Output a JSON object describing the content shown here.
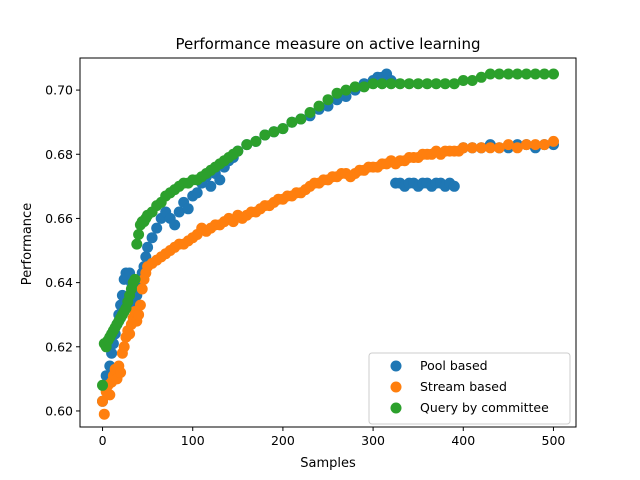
{
  "chart_data": {
    "type": "scatter",
    "title": "Performance measure on active learning",
    "xlabel": "Samples",
    "ylabel": "Performance",
    "xlim": [
      -25,
      525
    ],
    "ylim": [
      0.595,
      0.71
    ],
    "xticks": [
      0,
      100,
      200,
      300,
      400,
      500
    ],
    "yticks": [
      0.6,
      0.62,
      0.64,
      0.66,
      0.68,
      0.7
    ],
    "ytick_labels": [
      "0.60",
      "0.62",
      "0.64",
      "0.66",
      "0.68",
      "0.70"
    ],
    "legend_position": "lower-right",
    "grid": false,
    "series": [
      {
        "name": "Pool based",
        "color": "#1f77b4",
        "points": [
          [
            0,
            0.603
          ],
          [
            2,
            0.608
          ],
          [
            4,
            0.611
          ],
          [
            6,
            0.61
          ],
          [
            8,
            0.614
          ],
          [
            10,
            0.618
          ],
          [
            12,
            0.621
          ],
          [
            14,
            0.624
          ],
          [
            16,
            0.627
          ],
          [
            18,
            0.63
          ],
          [
            20,
            0.633
          ],
          [
            22,
            0.636
          ],
          [
            24,
            0.641
          ],
          [
            26,
            0.643
          ],
          [
            28,
            0.642
          ],
          [
            30,
            0.643
          ],
          [
            32,
            0.64
          ],
          [
            34,
            0.636
          ],
          [
            36,
            0.633
          ],
          [
            38,
            0.636
          ],
          [
            40,
            0.638
          ],
          [
            42,
            0.641
          ],
          [
            44,
            0.643
          ],
          [
            46,
            0.645
          ],
          [
            48,
            0.648
          ],
          [
            50,
            0.651
          ],
          [
            55,
            0.654
          ],
          [
            60,
            0.657
          ],
          [
            65,
            0.66
          ],
          [
            70,
            0.662
          ],
          [
            75,
            0.66
          ],
          [
            80,
            0.658
          ],
          [
            85,
            0.662
          ],
          [
            90,
            0.665
          ],
          [
            95,
            0.663
          ],
          [
            100,
            0.667
          ],
          [
            105,
            0.668
          ],
          [
            110,
            0.671
          ],
          [
            115,
            0.673
          ],
          [
            120,
            0.67
          ],
          [
            125,
            0.674
          ],
          [
            130,
            0.672
          ],
          [
            135,
            0.676
          ],
          [
            140,
            0.678
          ],
          [
            145,
            0.679
          ],
          [
            150,
            0.681
          ],
          [
            160,
            0.683
          ],
          [
            170,
            0.684
          ],
          [
            180,
            0.686
          ],
          [
            190,
            0.687
          ],
          [
            200,
            0.688
          ],
          [
            210,
            0.69
          ],
          [
            220,
            0.691
          ],
          [
            230,
            0.692
          ],
          [
            240,
            0.694
          ],
          [
            250,
            0.695
          ],
          [
            260,
            0.697
          ],
          [
            270,
            0.698
          ],
          [
            280,
            0.7
          ],
          [
            290,
            0.702
          ],
          [
            300,
            0.703
          ],
          [
            305,
            0.704
          ],
          [
            310,
            0.704
          ],
          [
            315,
            0.705
          ],
          [
            320,
            0.703
          ],
          [
            325,
            0.671
          ],
          [
            330,
            0.671
          ],
          [
            335,
            0.67
          ],
          [
            340,
            0.671
          ],
          [
            345,
            0.671
          ],
          [
            350,
            0.67
          ],
          [
            355,
            0.671
          ],
          [
            360,
            0.671
          ],
          [
            365,
            0.67
          ],
          [
            370,
            0.671
          ],
          [
            375,
            0.671
          ],
          [
            380,
            0.67
          ],
          [
            385,
            0.671
          ],
          [
            390,
            0.67
          ],
          [
            400,
            0.682
          ],
          [
            410,
            0.682
          ],
          [
            420,
            0.682
          ],
          [
            430,
            0.683
          ],
          [
            440,
            0.682
          ],
          [
            450,
            0.682
          ],
          [
            460,
            0.683
          ],
          [
            470,
            0.683
          ],
          [
            480,
            0.682
          ],
          [
            490,
            0.683
          ],
          [
            500,
            0.683
          ]
        ]
      },
      {
        "name": "Stream based",
        "color": "#ff7f0e",
        "points": [
          [
            0,
            0.603
          ],
          [
            2,
            0.599
          ],
          [
            4,
            0.606
          ],
          [
            6,
            0.608
          ],
          [
            8,
            0.605
          ],
          [
            10,
            0.609
          ],
          [
            12,
            0.611
          ],
          [
            14,
            0.613
          ],
          [
            16,
            0.61
          ],
          [
            18,
            0.614
          ],
          [
            20,
            0.612
          ],
          [
            22,
            0.618
          ],
          [
            24,
            0.62
          ],
          [
            26,
            0.623
          ],
          [
            28,
            0.625
          ],
          [
            30,
            0.624
          ],
          [
            32,
            0.627
          ],
          [
            34,
            0.629
          ],
          [
            36,
            0.631
          ],
          [
            38,
            0.628
          ],
          [
            40,
            0.63
          ],
          [
            42,
            0.633
          ],
          [
            44,
            0.638
          ],
          [
            46,
            0.641
          ],
          [
            48,
            0.643
          ],
          [
            50,
            0.645
          ],
          [
            55,
            0.646
          ],
          [
            60,
            0.647
          ],
          [
            65,
            0.648
          ],
          [
            70,
            0.649
          ],
          [
            75,
            0.65
          ],
          [
            80,
            0.651
          ],
          [
            85,
            0.652
          ],
          [
            90,
            0.652
          ],
          [
            95,
            0.653
          ],
          [
            100,
            0.654
          ],
          [
            105,
            0.655
          ],
          [
            110,
            0.657
          ],
          [
            115,
            0.656
          ],
          [
            120,
            0.657
          ],
          [
            125,
            0.658
          ],
          [
            130,
            0.658
          ],
          [
            135,
            0.659
          ],
          [
            140,
            0.66
          ],
          [
            145,
            0.659
          ],
          [
            150,
            0.661
          ],
          [
            155,
            0.66
          ],
          [
            160,
            0.661
          ],
          [
            165,
            0.662
          ],
          [
            170,
            0.662
          ],
          [
            175,
            0.663
          ],
          [
            180,
            0.664
          ],
          [
            185,
            0.664
          ],
          [
            190,
            0.665
          ],
          [
            195,
            0.666
          ],
          [
            200,
            0.666
          ],
          [
            205,
            0.667
          ],
          [
            210,
            0.667
          ],
          [
            215,
            0.668
          ],
          [
            220,
            0.668
          ],
          [
            225,
            0.669
          ],
          [
            230,
            0.67
          ],
          [
            235,
            0.671
          ],
          [
            240,
            0.671
          ],
          [
            245,
            0.672
          ],
          [
            250,
            0.672
          ],
          [
            255,
            0.673
          ],
          [
            260,
            0.673
          ],
          [
            265,
            0.674
          ],
          [
            270,
            0.674
          ],
          [
            275,
            0.673
          ],
          [
            280,
            0.674
          ],
          [
            285,
            0.675
          ],
          [
            290,
            0.675
          ],
          [
            295,
            0.676
          ],
          [
            300,
            0.676
          ],
          [
            305,
            0.676
          ],
          [
            310,
            0.677
          ],
          [
            315,
            0.677
          ],
          [
            320,
            0.678
          ],
          [
            325,
            0.677
          ],
          [
            330,
            0.678
          ],
          [
            335,
            0.678
          ],
          [
            340,
            0.679
          ],
          [
            345,
            0.679
          ],
          [
            350,
            0.679
          ],
          [
            355,
            0.68
          ],
          [
            360,
            0.68
          ],
          [
            365,
            0.68
          ],
          [
            370,
            0.681
          ],
          [
            375,
            0.68
          ],
          [
            380,
            0.681
          ],
          [
            385,
            0.681
          ],
          [
            390,
            0.681
          ],
          [
            395,
            0.681
          ],
          [
            400,
            0.682
          ],
          [
            410,
            0.682
          ],
          [
            420,
            0.682
          ],
          [
            430,
            0.682
          ],
          [
            440,
            0.682
          ],
          [
            450,
            0.683
          ],
          [
            460,
            0.682
          ],
          [
            470,
            0.683
          ],
          [
            480,
            0.683
          ],
          [
            490,
            0.683
          ],
          [
            500,
            0.684
          ]
        ]
      },
      {
        "name": "Query by committee",
        "color": "#2ca02c",
        "points": [
          [
            0,
            0.608
          ],
          [
            2,
            0.621
          ],
          [
            4,
            0.62
          ],
          [
            6,
            0.622
          ],
          [
            8,
            0.623
          ],
          [
            10,
            0.624
          ],
          [
            12,
            0.625
          ],
          [
            14,
            0.626
          ],
          [
            16,
            0.627
          ],
          [
            18,
            0.628
          ],
          [
            20,
            0.629
          ],
          [
            22,
            0.63
          ],
          [
            24,
            0.631
          ],
          [
            26,
            0.632
          ],
          [
            28,
            0.634
          ],
          [
            30,
            0.636
          ],
          [
            32,
            0.638
          ],
          [
            34,
            0.64
          ],
          [
            36,
            0.641
          ],
          [
            38,
            0.652
          ],
          [
            40,
            0.655
          ],
          [
            42,
            0.658
          ],
          [
            44,
            0.659
          ],
          [
            46,
            0.659
          ],
          [
            48,
            0.66
          ],
          [
            50,
            0.661
          ],
          [
            55,
            0.662
          ],
          [
            60,
            0.664
          ],
          [
            65,
            0.665
          ],
          [
            70,
            0.667
          ],
          [
            75,
            0.668
          ],
          [
            80,
            0.669
          ],
          [
            85,
            0.67
          ],
          [
            90,
            0.671
          ],
          [
            95,
            0.671
          ],
          [
            100,
            0.672
          ],
          [
            105,
            0.672
          ],
          [
            110,
            0.673
          ],
          [
            115,
            0.674
          ],
          [
            120,
            0.675
          ],
          [
            125,
            0.676
          ],
          [
            130,
            0.677
          ],
          [
            135,
            0.678
          ],
          [
            140,
            0.679
          ],
          [
            145,
            0.68
          ],
          [
            150,
            0.681
          ],
          [
            160,
            0.683
          ],
          [
            170,
            0.684
          ],
          [
            180,
            0.686
          ],
          [
            190,
            0.687
          ],
          [
            200,
            0.688
          ],
          [
            210,
            0.69
          ],
          [
            220,
            0.691
          ],
          [
            230,
            0.693
          ],
          [
            240,
            0.695
          ],
          [
            250,
            0.697
          ],
          [
            260,
            0.699
          ],
          [
            270,
            0.7
          ],
          [
            280,
            0.701
          ],
          [
            290,
            0.701
          ],
          [
            300,
            0.702
          ],
          [
            310,
            0.702
          ],
          [
            320,
            0.702
          ],
          [
            330,
            0.702
          ],
          [
            340,
            0.702
          ],
          [
            350,
            0.702
          ],
          [
            360,
            0.702
          ],
          [
            370,
            0.702
          ],
          [
            380,
            0.702
          ],
          [
            390,
            0.702
          ],
          [
            400,
            0.703
          ],
          [
            410,
            0.703
          ],
          [
            420,
            0.704
          ],
          [
            430,
            0.705
          ],
          [
            440,
            0.705
          ],
          [
            450,
            0.705
          ],
          [
            460,
            0.705
          ],
          [
            470,
            0.705
          ],
          [
            480,
            0.705
          ],
          [
            490,
            0.705
          ],
          [
            500,
            0.705
          ]
        ]
      }
    ]
  }
}
